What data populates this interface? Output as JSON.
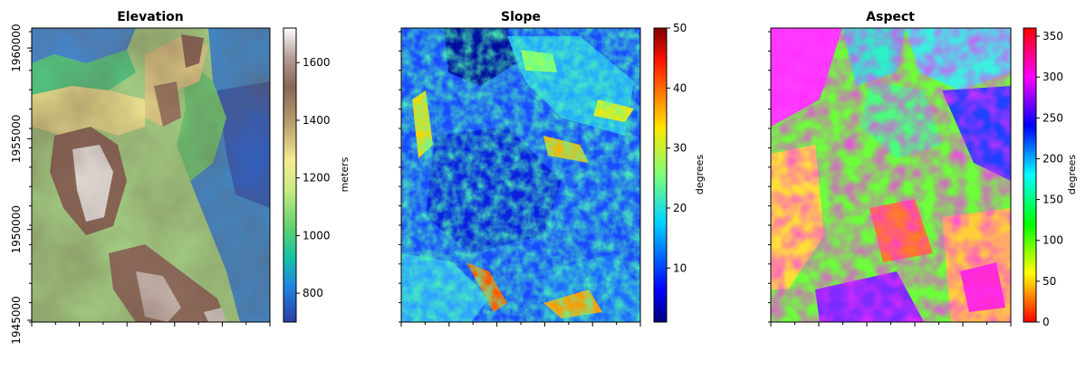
{
  "chart_data": [
    {
      "type": "heatmap",
      "title": "Elevation",
      "colormap": "terrain",
      "colorbar": {
        "label": "meters",
        "ticks": [
          800,
          1000,
          1200,
          1400,
          1600
        ],
        "range": [
          700,
          1720
        ]
      },
      "y_ticks": [
        "1945000",
        "1950000",
        "1955000",
        "1960000"
      ],
      "y_range": [
        1944900,
        1961100
      ],
      "x_ticks_labeled": false,
      "description_values": {
        "min": 700,
        "max": 1720
      }
    },
    {
      "type": "heatmap",
      "title": "Slope",
      "colormap": "jet",
      "colorbar": {
        "label": "degrees",
        "ticks": [
          10,
          20,
          30,
          40,
          50
        ],
        "range": [
          1,
          50
        ]
      },
      "y_ticks_labeled": false,
      "x_ticks_labeled": false
    },
    {
      "type": "heatmap",
      "title": "Aspect",
      "colormap": "hsv",
      "colorbar": {
        "label": "degrees",
        "ticks": [
          0,
          50,
          100,
          150,
          200,
          250,
          300,
          350
        ],
        "range": [
          0,
          360
        ]
      },
      "y_ticks_labeled": false,
      "x_ticks_labeled": false
    }
  ]
}
